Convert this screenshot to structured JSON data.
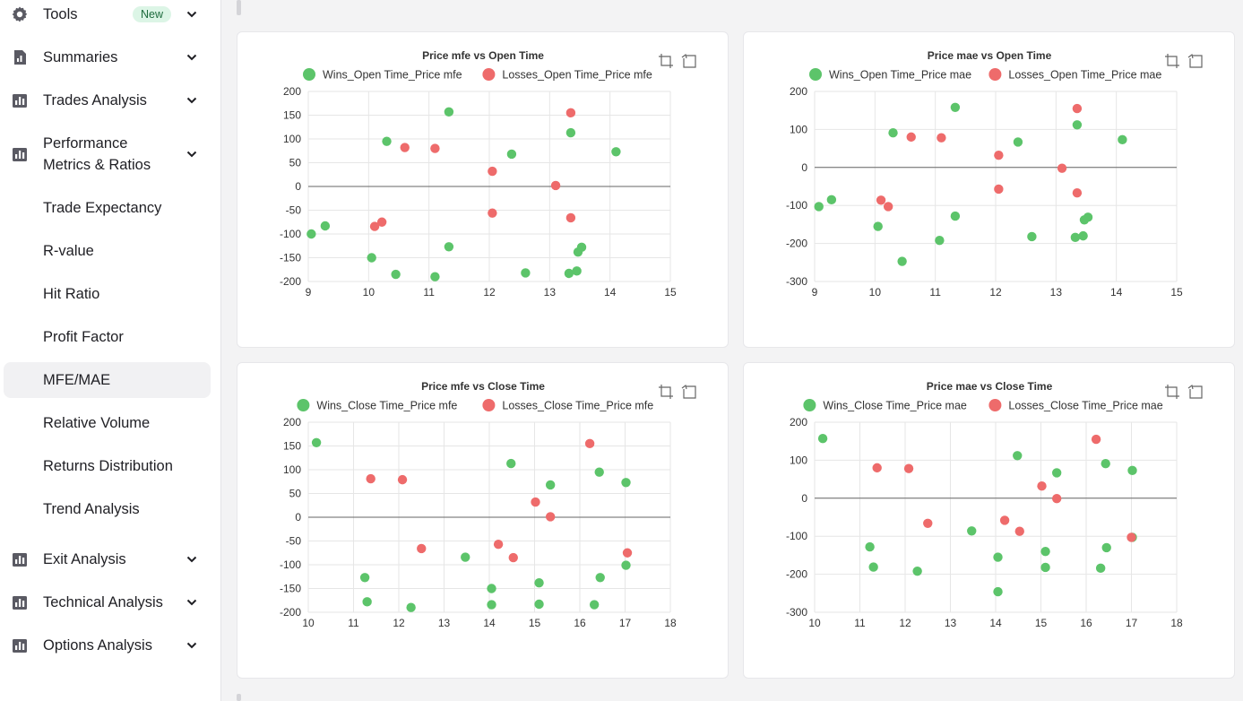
{
  "sidebar": {
    "items": [
      {
        "label": "Tools",
        "icon": "gear-icon",
        "badge": "New",
        "chevron": true
      },
      {
        "label": "Summaries",
        "icon": "report-icon",
        "chevron": true
      },
      {
        "label": "Trades Analysis",
        "icon": "chart-bar-icon",
        "chevron": true
      },
      {
        "label": "Performance Metrics & Ratios",
        "label_line1": "Performance",
        "label_line2": "Metrics & Ratios",
        "icon": "chart-bar-icon",
        "chevron": true
      },
      {
        "label": "Trade Expectancy"
      },
      {
        "label": "R-value"
      },
      {
        "label": "Hit Ratio"
      },
      {
        "label": "Profit Factor"
      },
      {
        "label": "MFE/MAE",
        "active": true
      },
      {
        "label": "Relative Volume"
      },
      {
        "label": "Returns Distribution"
      },
      {
        "label": "Trend Analysis"
      },
      {
        "label": "Exit Analysis",
        "icon": "chart-bar-icon",
        "chevron": true
      },
      {
        "label": "Technical Analysis",
        "icon": "chart-bar-icon",
        "chevron": true
      },
      {
        "label": "Options Analysis",
        "icon": "chart-bar-icon",
        "chevron": true
      }
    ]
  },
  "colors": {
    "win": "#5cc46a",
    "loss": "#ee6b6b",
    "axis": "#666666",
    "grid": "#e6e6e6",
    "text": "#333333"
  },
  "chart_data": [
    {
      "type": "scatter",
      "title": "Price mfe vs Open Time",
      "xlim": [
        9,
        15
      ],
      "xticks": [
        9,
        10,
        11,
        12,
        13,
        14,
        15
      ],
      "ylim": [
        -200,
        200
      ],
      "yticks": [
        200,
        150,
        100,
        50,
        0,
        -50,
        -100,
        -150,
        -200
      ],
      "series": [
        {
          "name": "Wins_Open Time_Price mfe",
          "kind": "win",
          "points": [
            [
              9.05,
              -100
            ],
            [
              9.28,
              -83
            ],
            [
              10.05,
              -150
            ],
            [
              10.3,
              95
            ],
            [
              10.45,
              -185
            ],
            [
              11.1,
              -190
            ],
            [
              11.33,
              157
            ],
            [
              11.33,
              -127
            ],
            [
              12.37,
              68
            ],
            [
              12.6,
              -182
            ],
            [
              13.35,
              113
            ],
            [
              13.32,
              -183
            ],
            [
              13.45,
              -178
            ],
            [
              13.47,
              -138
            ],
            [
              13.53,
              -128
            ],
            [
              14.1,
              73
            ]
          ]
        },
        {
          "name": "Losses_Open Time_Price mfe",
          "kind": "loss",
          "points": [
            [
              10.1,
              -84
            ],
            [
              10.22,
              -75
            ],
            [
              10.6,
              82
            ],
            [
              11.1,
              80
            ],
            [
              12.05,
              32
            ],
            [
              12.05,
              -56
            ],
            [
              13.1,
              2
            ],
            [
              13.35,
              155
            ],
            [
              13.35,
              -66
            ]
          ]
        }
      ]
    },
    {
      "type": "scatter",
      "title": "Price mae vs Open Time",
      "xlim": [
        9,
        15
      ],
      "xticks": [
        9,
        10,
        11,
        12,
        13,
        14,
        15
      ],
      "ylim": [
        -300,
        200
      ],
      "yticks": [
        200,
        100,
        0,
        -100,
        -200,
        -300
      ],
      "series": [
        {
          "name": "Wins_Open Time_Price mae",
          "kind": "win",
          "points": [
            [
              9.07,
              -103
            ],
            [
              9.28,
              -85
            ],
            [
              10.05,
              -155
            ],
            [
              10.3,
              91
            ],
            [
              10.45,
              -247
            ],
            [
              11.07,
              -192
            ],
            [
              11.33,
              158
            ],
            [
              11.33,
              -128
            ],
            [
              12.37,
              67
            ],
            [
              12.6,
              -182
            ],
            [
              13.35,
              112
            ],
            [
              13.32,
              -184
            ],
            [
              13.45,
              -180
            ],
            [
              13.47,
              -138
            ],
            [
              13.53,
              -131
            ],
            [
              14.1,
              73
            ]
          ]
        },
        {
          "name": "Losses_Open Time_Price mae",
          "kind": "loss",
          "points": [
            [
              10.1,
              -86
            ],
            [
              10.22,
              -103
            ],
            [
              10.6,
              80
            ],
            [
              11.1,
              78
            ],
            [
              12.05,
              32
            ],
            [
              12.05,
              -57
            ],
            [
              13.1,
              -2
            ],
            [
              13.35,
              155
            ],
            [
              13.35,
              -67
            ]
          ]
        }
      ]
    },
    {
      "type": "scatter",
      "title": "Price mfe vs Close Time",
      "xlim": [
        10,
        18
      ],
      "xticks": [
        10,
        11,
        12,
        13,
        14,
        15,
        16,
        17,
        18
      ],
      "ylim": [
        -200,
        200
      ],
      "yticks": [
        200,
        150,
        100,
        50,
        0,
        -50,
        -100,
        -150,
        -200
      ],
      "series": [
        {
          "name": "Wins_Close Time_Price mfe",
          "kind": "win",
          "points": [
            [
              10.18,
              157
            ],
            [
              11.25,
              -127
            ],
            [
              11.3,
              -178
            ],
            [
              12.27,
              -190
            ],
            [
              13.47,
              -84
            ],
            [
              14.05,
              -150
            ],
            [
              14.05,
              -184
            ],
            [
              14.48,
              113
            ],
            [
              15.1,
              -138
            ],
            [
              15.1,
              -183
            ],
            [
              15.35,
              68
            ],
            [
              16.32,
              -184
            ],
            [
              16.45,
              -127
            ],
            [
              16.43,
              95
            ],
            [
              17.02,
              -101
            ],
            [
              17.02,
              73
            ]
          ]
        },
        {
          "name": "Losses_Close Time_Price mfe",
          "kind": "loss",
          "points": [
            [
              11.38,
              81
            ],
            [
              12.08,
              79
            ],
            [
              12.5,
              -66
            ],
            [
              14.2,
              -57
            ],
            [
              14.53,
              -85
            ],
            [
              15.02,
              32
            ],
            [
              15.35,
              1
            ],
            [
              16.22,
              155
            ],
            [
              17.05,
              -75
            ]
          ]
        }
      ]
    },
    {
      "type": "scatter",
      "title": "Price mae vs Close Time",
      "xlim": [
        10,
        18
      ],
      "xticks": [
        10,
        11,
        12,
        13,
        14,
        15,
        16,
        17,
        18
      ],
      "ylim": [
        -300,
        200
      ],
      "yticks": [
        200,
        100,
        0,
        -100,
        -200,
        -300
      ],
      "series": [
        {
          "name": "Wins_Close Time_Price mae",
          "kind": "win",
          "points": [
            [
              10.18,
              157
            ],
            [
              11.22,
              -128
            ],
            [
              11.3,
              -181
            ],
            [
              12.27,
              -192
            ],
            [
              13.47,
              -86
            ],
            [
              14.05,
              -155
            ],
            [
              14.05,
              -246
            ],
            [
              14.48,
              112
            ],
            [
              15.1,
              -140
            ],
            [
              15.1,
              -182
            ],
            [
              15.35,
              67
            ],
            [
              16.32,
              -184
            ],
            [
              16.45,
              -130
            ],
            [
              16.43,
              91
            ],
            [
              17.02,
              -103
            ],
            [
              17.02,
              73
            ]
          ]
        },
        {
          "name": "Losses_Close Time_Price mae",
          "kind": "loss",
          "points": [
            [
              11.38,
              80
            ],
            [
              12.08,
              78
            ],
            [
              12.5,
              -66
            ],
            [
              14.2,
              -58
            ],
            [
              14.53,
              -87
            ],
            [
              15.02,
              32
            ],
            [
              15.35,
              -1
            ],
            [
              16.22,
              155
            ],
            [
              17.0,
              -103
            ]
          ]
        }
      ]
    }
  ]
}
